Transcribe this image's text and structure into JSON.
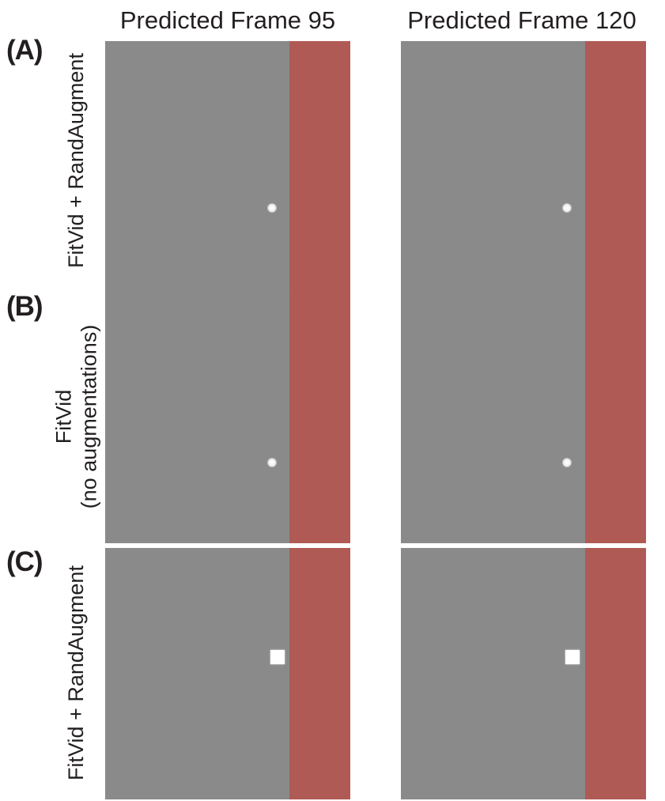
{
  "column_titles": [
    "Predicted Frame 95",
    "Predicted Frame 120"
  ],
  "rows": [
    {
      "label": "(A)",
      "side_label_lines": [
        "FitVid + RandAugment"
      ],
      "object": "ball"
    },
    {
      "label": "(B)",
      "side_label_lines": [
        "FitVid",
        "(no augmentations)"
      ],
      "object": "ball"
    },
    {
      "label": "(C)",
      "side_label_lines": [
        "FitVid + RandAugment"
      ],
      "object": "square"
    }
  ],
  "colors": {
    "background": "#8a8a8a",
    "wall": "#b05a55",
    "object": "#ffffff"
  }
}
